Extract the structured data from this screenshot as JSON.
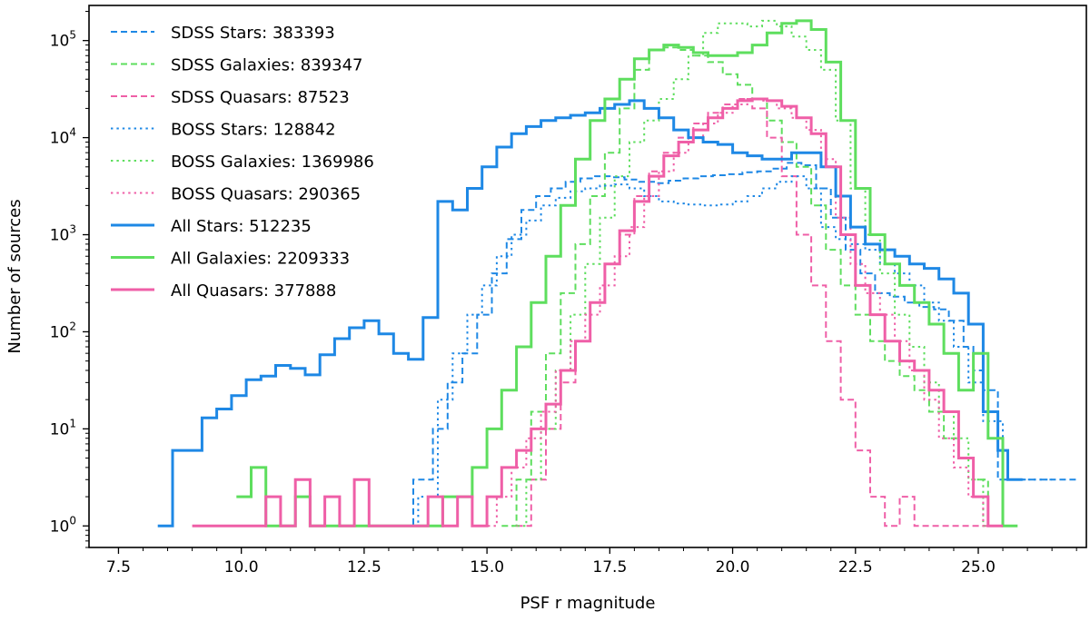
{
  "chart_data": {
    "type": "line",
    "step": true,
    "title": "",
    "xlabel": "PSF r magnitude",
    "ylabel": "Number of sources",
    "xlim": [
      6.9,
      27.2
    ],
    "ylim": [
      0.6,
      230000
    ],
    "yscale": "log",
    "xticks": [
      7.5,
      10.0,
      12.5,
      15.0,
      17.5,
      20.0,
      22.5,
      25.0
    ],
    "xtick_labels": [
      "7.5",
      "10.0",
      "12.5",
      "15.0",
      "17.5",
      "20.0",
      "22.5",
      "25.0"
    ],
    "yticks": [
      1,
      10,
      100,
      1000,
      10000,
      100000
    ],
    "ytick_labels": [
      {
        "base": "10",
        "exp": "0"
      },
      {
        "base": "10",
        "exp": "1"
      },
      {
        "base": "10",
        "exp": "2"
      },
      {
        "base": "10",
        "exp": "3"
      },
      {
        "base": "10",
        "exp": "4"
      },
      {
        "base": "10",
        "exp": "5"
      }
    ],
    "grid": false,
    "legend_position": "top-left",
    "series": [
      {
        "name": "SDSS Stars: 383393",
        "color": "#1e88e5",
        "style": "dashed",
        "x": [
          11.9,
          13.5,
          13.9,
          14.2,
          14.5,
          14.8,
          15.1,
          15.4,
          15.7,
          16.0,
          16.3,
          16.6,
          16.9,
          17.2,
          17.5,
          17.8,
          18.1,
          18.4,
          18.7,
          19.0,
          19.3,
          19.6,
          19.9,
          20.2,
          20.5,
          20.8,
          21.1,
          21.4,
          21.7,
          22.0,
          22.3,
          22.6,
          22.9,
          23.2,
          23.5,
          23.8,
          24.1,
          24.4,
          24.7,
          24.9,
          25.1,
          25.4
        ],
        "y": [
          1,
          3,
          10,
          30,
          60,
          150,
          400,
          900,
          1800,
          2500,
          3000,
          3500,
          3800,
          4000,
          3900,
          3700,
          3500,
          3400,
          3600,
          3800,
          4000,
          4100,
          4200,
          4400,
          4500,
          4800,
          5500,
          5200,
          3000,
          1500,
          700,
          400,
          250,
          230,
          200,
          180,
          170,
          130,
          70,
          40,
          25,
          3
        ]
      },
      {
        "name": "SDSS Galaxies: 839347",
        "color": "#5ede5e",
        "style": "dashed",
        "x": [
          15.3,
          15.6,
          15.9,
          16.2,
          16.5,
          16.8,
          17.1,
          17.4,
          17.7,
          18.0,
          18.3,
          18.6,
          18.9,
          19.2,
          19.5,
          19.8,
          20.1,
          20.4,
          20.7,
          21.0,
          21.3,
          21.6,
          21.9,
          22.2,
          22.5,
          22.8,
          23.1,
          23.4,
          23.7,
          24.0,
          24.3,
          24.6,
          24.9,
          25.2
        ],
        "y": [
          1,
          3,
          15,
          60,
          250,
          800,
          2500,
          7000,
          20000,
          50000,
          80000,
          85000,
          80000,
          70000,
          60000,
          45000,
          35000,
          25000,
          15000,
          9000,
          5000,
          2000,
          700,
          300,
          150,
          80,
          50,
          35,
          25,
          15,
          8,
          5,
          3,
          1
        ]
      },
      {
        "name": "SDSS Quasars: 87523",
        "color": "#ef5fa7",
        "style": "dashed",
        "x": [
          15.6,
          15.9,
          16.2,
          16.5,
          16.8,
          17.1,
          17.4,
          17.7,
          18.0,
          18.3,
          18.6,
          18.9,
          19.2,
          19.5,
          19.8,
          20.1,
          20.4,
          20.7,
          21.0,
          21.3,
          21.6,
          21.9,
          22.2,
          22.5,
          22.8,
          23.1,
          23.4,
          23.7,
          24.0,
          24.3,
          24.6,
          24.9
        ],
        "y": [
          1,
          3,
          10,
          30,
          80,
          200,
          500,
          1000,
          2500,
          4500,
          7000,
          10000,
          14000,
          18000,
          22000,
          25000,
          20000,
          10000,
          4000,
          1000,
          300,
          80,
          20,
          6,
          2,
          1,
          2,
          1,
          1,
          1,
          1,
          1
        ]
      },
      {
        "name": "BOSS Stars: 128842",
        "color": "#1e88e5",
        "style": "dotted",
        "x": [
          12.6,
          13.6,
          14.0,
          14.3,
          14.6,
          14.9,
          15.2,
          15.5,
          15.8,
          16.1,
          16.4,
          16.7,
          17.0,
          17.3,
          17.6,
          17.9,
          18.2,
          18.5,
          18.8,
          19.1,
          19.4,
          19.7,
          20.0,
          20.3,
          20.6,
          20.9,
          21.2,
          21.5,
          21.8,
          22.1,
          22.4,
          22.7,
          23.0,
          23.3,
          23.6,
          23.9,
          24.2,
          24.5,
          24.8,
          25.1,
          25.5
        ],
        "y": [
          1,
          2,
          20,
          60,
          150,
          300,
          600,
          1000,
          1400,
          2000,
          2400,
          2800,
          3000,
          3200,
          3300,
          3000,
          2500,
          2200,
          2100,
          2050,
          2000,
          2050,
          2200,
          2500,
          3000,
          3500,
          4000,
          3000,
          1200,
          900,
          800,
          700,
          500,
          400,
          300,
          200,
          130,
          70,
          30,
          12,
          3
        ]
      },
      {
        "name": "BOSS Galaxies: 1369986",
        "color": "#5ede5e",
        "style": "dotted",
        "x": [
          15.5,
          15.8,
          16.1,
          16.4,
          16.7,
          17.0,
          17.3,
          17.6,
          17.9,
          18.2,
          18.5,
          18.8,
          19.1,
          19.4,
          19.7,
          20.0,
          20.3,
          20.6,
          20.9,
          21.2,
          21.5,
          21.8,
          22.1,
          22.4,
          22.7,
          23.0,
          23.3,
          23.6,
          23.9,
          24.2,
          24.5,
          24.8,
          25.1
        ],
        "y": [
          1,
          3,
          10,
          40,
          150,
          500,
          1500,
          4000,
          9000,
          15000,
          25000,
          40000,
          70000,
          120000,
          150000,
          150000,
          140000,
          160000,
          140000,
          110000,
          80000,
          50000,
          15000,
          3000,
          1000,
          400,
          150,
          70,
          30,
          15,
          8,
          3,
          1
        ]
      },
      {
        "name": "BOSS Quasars: 290365",
        "color": "#ef5fa7",
        "style": "dotted",
        "x": [
          14.9,
          15.2,
          15.5,
          15.8,
          16.1,
          16.4,
          16.7,
          17.0,
          17.3,
          17.6,
          17.9,
          18.2,
          18.5,
          18.8,
          19.1,
          19.4,
          19.7,
          20.0,
          20.3,
          20.6,
          20.9,
          21.2,
          21.5,
          21.8,
          22.1,
          22.4,
          22.7,
          23.0,
          23.3,
          23.6,
          23.9,
          24.2,
          24.5,
          24.8,
          25.1
        ],
        "y": [
          1,
          2,
          4,
          8,
          15,
          40,
          80,
          150,
          300,
          600,
          1200,
          2500,
          4500,
          7000,
          10000,
          14000,
          18000,
          22000,
          25000,
          24000,
          20000,
          16000,
          12000,
          6000,
          1500,
          500,
          250,
          150,
          80,
          40,
          20,
          8,
          4,
          2,
          1
        ]
      },
      {
        "name": "All Stars: 512235",
        "color": "#1e88e5",
        "style": "solid",
        "x": [
          8.3,
          8.6,
          8.9,
          9.2,
          9.5,
          9.8,
          10.1,
          10.4,
          10.7,
          11.0,
          11.3,
          11.6,
          11.9,
          12.2,
          12.5,
          12.8,
          13.1,
          13.4,
          13.7,
          14.0,
          14.3,
          14.6,
          14.9,
          15.2,
          15.5,
          15.8,
          16.1,
          16.4,
          16.7,
          17.0,
          17.3,
          17.6,
          17.9,
          18.2,
          18.5,
          18.8,
          19.1,
          19.4,
          19.7,
          20.0,
          20.3,
          20.6,
          20.9,
          21.2,
          21.5,
          21.8,
          22.1,
          22.4,
          22.7,
          23.0,
          23.3,
          23.6,
          23.9,
          24.2,
          24.5,
          24.8,
          25.1,
          25.4,
          25.6
        ],
        "y": [
          1,
          6,
          6,
          13,
          16,
          22,
          32,
          35,
          45,
          42,
          36,
          58,
          85,
          110,
          130,
          95,
          60,
          52,
          140,
          2200,
          1800,
          3000,
          5000,
          8000,
          11000,
          13000,
          15000,
          16000,
          17000,
          18000,
          20000,
          22000,
          24000,
          20000,
          16000,
          12000,
          10000,
          9000,
          8500,
          7000,
          6500,
          6000,
          6000,
          7000,
          7000,
          5000,
          2500,
          1200,
          800,
          700,
          600,
          500,
          450,
          350,
          250,
          120,
          15,
          6,
          3
        ]
      },
      {
        "name": "All Galaxies: 2209333",
        "color": "#5ede5e",
        "style": "solid",
        "x": [
          9.9,
          10.2,
          10.5,
          10.8,
          11.1,
          11.4,
          11.7,
          12.0,
          12.3,
          12.6,
          12.9,
          13.2,
          13.5,
          13.8,
          14.1,
          14.4,
          14.7,
          15.0,
          15.3,
          15.6,
          15.9,
          16.2,
          16.5,
          16.8,
          17.1,
          17.4,
          17.7,
          18.0,
          18.3,
          18.6,
          18.9,
          19.2,
          19.5,
          19.8,
          20.1,
          20.4,
          20.7,
          21.0,
          21.3,
          21.6,
          21.9,
          22.2,
          22.5,
          22.8,
          23.1,
          23.4,
          23.7,
          24.0,
          24.3,
          24.6,
          24.9,
          25.2,
          25.5
        ],
        "y": [
          2,
          4,
          1,
          1,
          2,
          1,
          1,
          1,
          1,
          1,
          1,
          1,
          1,
          1,
          2,
          2,
          4,
          10,
          25,
          70,
          200,
          600,
          2000,
          6000,
          15000,
          25000,
          40000,
          65000,
          80000,
          90000,
          85000,
          75000,
          70000,
          70000,
          75000,
          90000,
          120000,
          150000,
          160000,
          130000,
          60000,
          15000,
          3000,
          1000,
          500,
          300,
          200,
          120,
          60,
          25,
          60,
          8,
          1
        ]
      },
      {
        "name": "All Quasars: 377888",
        "color": "#ef5fa7",
        "style": "solid",
        "x": [
          9.0,
          9.3,
          9.6,
          9.9,
          10.2,
          10.5,
          10.8,
          11.1,
          11.4,
          11.7,
          12.0,
          12.3,
          12.6,
          12.9,
          13.2,
          13.5,
          13.8,
          14.1,
          14.4,
          14.7,
          15.0,
          15.3,
          15.6,
          15.9,
          16.2,
          16.5,
          16.8,
          17.1,
          17.4,
          17.7,
          18.0,
          18.3,
          18.6,
          18.9,
          19.2,
          19.5,
          19.8,
          20.1,
          20.4,
          20.7,
          21.0,
          21.3,
          21.6,
          21.9,
          22.2,
          22.5,
          22.8,
          23.1,
          23.4,
          23.7,
          24.0,
          24.3,
          24.6,
          24.9,
          25.2
        ],
        "y": [
          1,
          1,
          1,
          1,
          1,
          2,
          1,
          3,
          1,
          2,
          1,
          3,
          1,
          1,
          1,
          1,
          2,
          1,
          2,
          1,
          2,
          4,
          6,
          10,
          18,
          40,
          80,
          200,
          500,
          1100,
          2200,
          4000,
          6500,
          9000,
          12000,
          16000,
          20000,
          24000,
          25000,
          24000,
          21000,
          16000,
          11000,
          5000,
          1000,
          300,
          150,
          80,
          50,
          40,
          25,
          15,
          5,
          2,
          1
        ]
      }
    ]
  }
}
